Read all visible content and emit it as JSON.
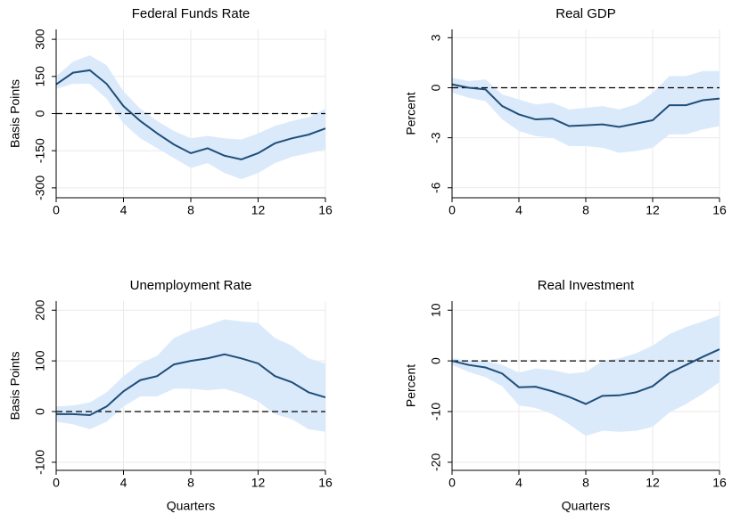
{
  "chart_data": [
    {
      "type": "line",
      "title": "Federal Funds Rate",
      "y_label": "Basis Points",
      "x": [
        0,
        1,
        2,
        3,
        4,
        5,
        6,
        7,
        8,
        9,
        10,
        11,
        12,
        13,
        14,
        15,
        16
      ],
      "xlim": [
        0,
        16
      ],
      "xticks": [
        0,
        4,
        8,
        12,
        16
      ],
      "ylim": [
        -340,
        340
      ],
      "yticks": [
        -300,
        -150,
        0,
        150,
        300
      ],
      "reference_line": 0,
      "grid": true,
      "series": [
        {
          "color": "#1f4e79",
          "band_color": "#dbeafb",
          "values": [
            118,
            165,
            175,
            120,
            30,
            -30,
            -80,
            -125,
            -160,
            -140,
            -170,
            -185,
            -160,
            -120,
            -100,
            -85,
            -60
          ],
          "upper": [
            150,
            210,
            235,
            195,
            90,
            20,
            -30,
            -70,
            -100,
            -90,
            -100,
            -105,
            -80,
            -50,
            -30,
            -15,
            20
          ],
          "lower": [
            100,
            120,
            120,
            60,
            -40,
            -100,
            -140,
            -180,
            -220,
            -200,
            -240,
            -265,
            -240,
            -200,
            -175,
            -160,
            -145
          ]
        }
      ]
    },
    {
      "type": "line",
      "title": "Real GDP",
      "y_label": "Percent",
      "x": [
        0,
        1,
        2,
        3,
        4,
        5,
        6,
        7,
        8,
        9,
        10,
        11,
        12,
        13,
        14,
        15,
        16
      ],
      "xlim": [
        0,
        16
      ],
      "xticks": [
        0,
        4,
        8,
        12,
        16
      ],
      "ylim": [
        -6.6,
        3.5
      ],
      "yticks": [
        -6,
        -3,
        0,
        3
      ],
      "reference_line": 0,
      "grid": true,
      "series": [
        {
          "color": "#1f4e79",
          "band_color": "#dbeafb",
          "values": [
            0.2,
            0,
            -0.1,
            -1.1,
            -1.6,
            -1.9,
            -1.85,
            -2.3,
            -2.25,
            -2.2,
            -2.35,
            -2.15,
            -1.95,
            -1.05,
            -1.05,
            -0.75,
            -0.65
          ],
          "upper": [
            0.6,
            0.4,
            0.5,
            -0.4,
            -0.7,
            -1.0,
            -0.9,
            -1.3,
            -1.2,
            -1.1,
            -1.3,
            -1.0,
            -0.3,
            0.7,
            0.7,
            1.0,
            1.0
          ],
          "lower": [
            -0.3,
            -0.6,
            -0.8,
            -1.9,
            -2.6,
            -2.9,
            -3.0,
            -3.5,
            -3.5,
            -3.6,
            -3.9,
            -3.8,
            -3.6,
            -2.8,
            -2.8,
            -2.5,
            -2.3
          ]
        }
      ]
    },
    {
      "type": "line",
      "title": "Unemployment Rate",
      "y_label": "Basis Points",
      "x_label": "Quarters",
      "x": [
        0,
        1,
        2,
        3,
        4,
        5,
        6,
        7,
        8,
        9,
        10,
        11,
        12,
        13,
        14,
        15,
        16
      ],
      "xlim": [
        0,
        16
      ],
      "xticks": [
        0,
        4,
        8,
        12,
        16
      ],
      "ylim": [
        -116,
        218
      ],
      "yticks": [
        -100,
        0,
        100,
        200
      ],
      "reference_line": 0,
      "grid": true,
      "series": [
        {
          "color": "#1f4e79",
          "band_color": "#dbeafb",
          "values": [
            -5,
            -5,
            -7,
            10,
            40,
            62,
            70,
            93,
            100,
            105,
            113,
            105,
            95,
            70,
            58,
            38,
            28
          ],
          "upper": [
            10,
            12,
            18,
            38,
            70,
            95,
            110,
            145,
            160,
            170,
            182,
            178,
            175,
            145,
            130,
            105,
            95
          ],
          "lower": [
            -20,
            -25,
            -35,
            -20,
            10,
            30,
            30,
            45,
            45,
            42,
            45,
            35,
            20,
            -5,
            -15,
            -35,
            -40
          ]
        }
      ]
    },
    {
      "type": "line",
      "title": "Real Investment",
      "y_label": "Percent",
      "x_label": "Quarters",
      "x": [
        0,
        1,
        2,
        3,
        4,
        5,
        6,
        7,
        8,
        9,
        10,
        11,
        12,
        13,
        14,
        15,
        16
      ],
      "xlim": [
        0,
        16
      ],
      "xticks": [
        0,
        4,
        8,
        12,
        16
      ],
      "ylim": [
        -21.6,
        11.8
      ],
      "yticks": [
        -20,
        -10,
        0,
        10
      ],
      "reference_line": 0,
      "grid": true,
      "series": [
        {
          "color": "#1f4e79",
          "band_color": "#dbeafb",
          "values": [
            0,
            -0.8,
            -1.3,
            -2.5,
            -5.2,
            -5.1,
            -6,
            -7.1,
            -8.5,
            -6.9,
            -6.8,
            -6.2,
            -5,
            -2.4,
            -0.8,
            0.8,
            2.3
          ],
          "upper": [
            0.5,
            0,
            0,
            -0.8,
            -2.3,
            -1.5,
            -1.8,
            -2.5,
            -2.2,
            0,
            0.5,
            1.5,
            3,
            5.3,
            6.7,
            7.8,
            9
          ],
          "lower": [
            -0.8,
            -2.2,
            -3.2,
            -5,
            -8.8,
            -9.3,
            -10.5,
            -12.5,
            -14.8,
            -13.8,
            -14,
            -13.8,
            -13,
            -10.2,
            -8.5,
            -6.5,
            -4.2
          ]
        }
      ]
    }
  ]
}
